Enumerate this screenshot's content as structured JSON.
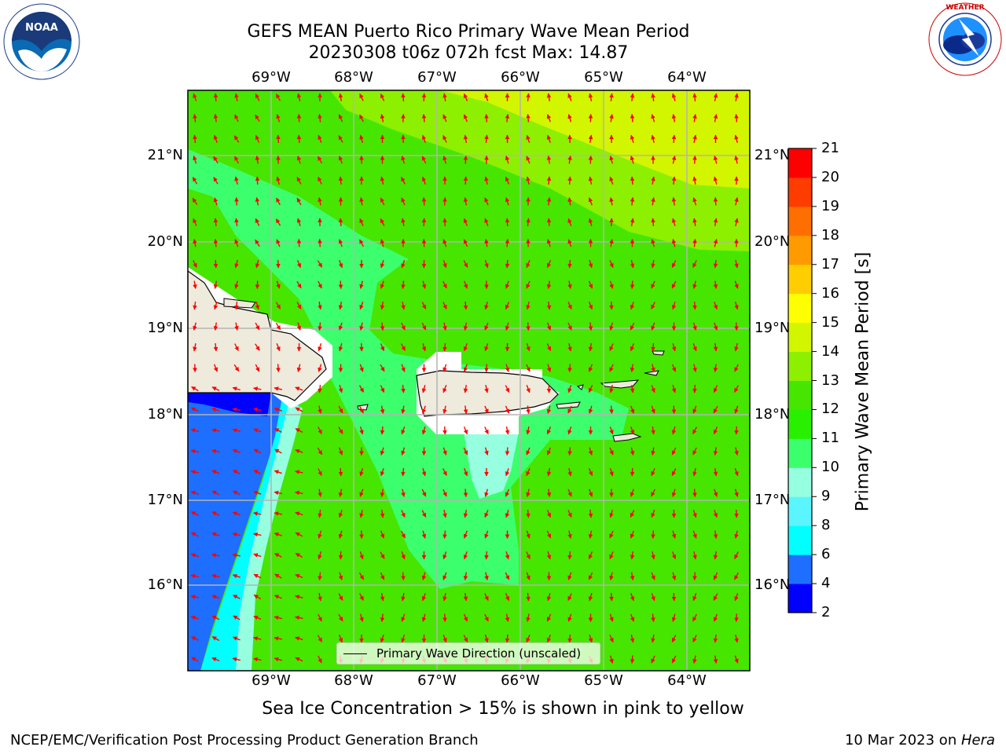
{
  "header": {
    "title_line1": "GEFS MEAN Puerto Rico Primary Wave Mean Period",
    "title_line2": "20230308 t06z 072h fcst   Max: 14.87"
  },
  "logos": {
    "left": "NOAA",
    "left_ring": "NATIONAL OCEANIC AND ATMOSPHERIC ADMINISTRATION · U.S. DEPARTMENT OF COMMERCE",
    "right_ring": "NATIONAL WEATHER SERVICE"
  },
  "axes": {
    "lon_labels": [
      "69°W",
      "68°W",
      "67°W",
      "66°W",
      "65°W",
      "64°W"
    ],
    "lat_labels": [
      "21°N",
      "20°N",
      "19°N",
      "18°N",
      "17°N",
      "16°N"
    ]
  },
  "legend": {
    "label": "Primary Wave Direction (unscaled)"
  },
  "colorbar": {
    "label": "Primary Wave Mean Period [s]",
    "ticks": [
      "2",
      "4",
      "6",
      "8",
      "9",
      "10",
      "11",
      "12",
      "13",
      "14",
      "15",
      "16",
      "17",
      "18",
      "19",
      "20",
      "21"
    ],
    "colors": [
      "#0000ff",
      "#1e6eff",
      "#00ffff",
      "#5af5ff",
      "#96ffe0",
      "#3cff6e",
      "#28f000",
      "#46e600",
      "#8cf000",
      "#d2f500",
      "#ffff00",
      "#ffcd00",
      "#ff9b00",
      "#ff6e00",
      "#ff3c00",
      "#ff0000"
    ]
  },
  "note": "Sea Ice Concentration > 15% is shown in pink to yellow",
  "footer": {
    "left": "NCEP/EMC/Verification Post Processing Product Generation Branch",
    "right_date": "10 Mar 2023 on ",
    "right_machine": "Hera"
  },
  "colors": {
    "arrow": "#ff0000",
    "land": "#eeeadc",
    "grid": "#b4b4b4"
  }
}
